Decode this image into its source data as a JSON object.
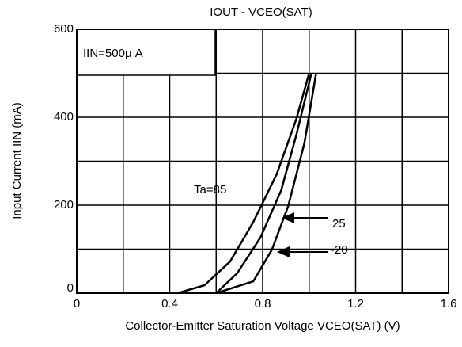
{
  "chart_data": {
    "type": "line",
    "title": "IOUT  -  VCEO(SAT)",
    "x_label": "Collector-Emitter Saturation Voltage VCEO(SAT) (V)",
    "y_label": "Input Current IIN (mA)",
    "condition": "IIN=500μ A",
    "annotations": [
      "Ta=85",
      "25",
      "-20"
    ],
    "xlim": [
      0,
      1.6
    ],
    "xticks": [
      0,
      0.4,
      0.8,
      1.2,
      1.6
    ],
    "ylim": [
      0,
      600
    ],
    "yticks": [
      0,
      200,
      400,
      600
    ],
    "grid": true,
    "color": "#000000",
    "series": [
      {
        "name": "Ta=85",
        "x": [
          0.435,
          0.55,
          0.66,
          0.76,
          0.86,
          0.945,
          1.0
        ],
        "values": [
          0,
          18,
          72,
          162,
          270,
          396,
          500
        ]
      },
      {
        "name": "25",
        "x": [
          0.6,
          0.69,
          0.79,
          0.88,
          0.945,
          1.01
        ],
        "values": [
          0,
          45,
          126,
          234,
          360,
          500
        ]
      },
      {
        "name": "-20",
        "x": [
          0.6,
          0.76,
          0.84,
          0.91,
          0.98,
          1.03
        ],
        "values": [
          0,
          27,
          99,
          198,
          342,
          500
        ]
      }
    ]
  }
}
